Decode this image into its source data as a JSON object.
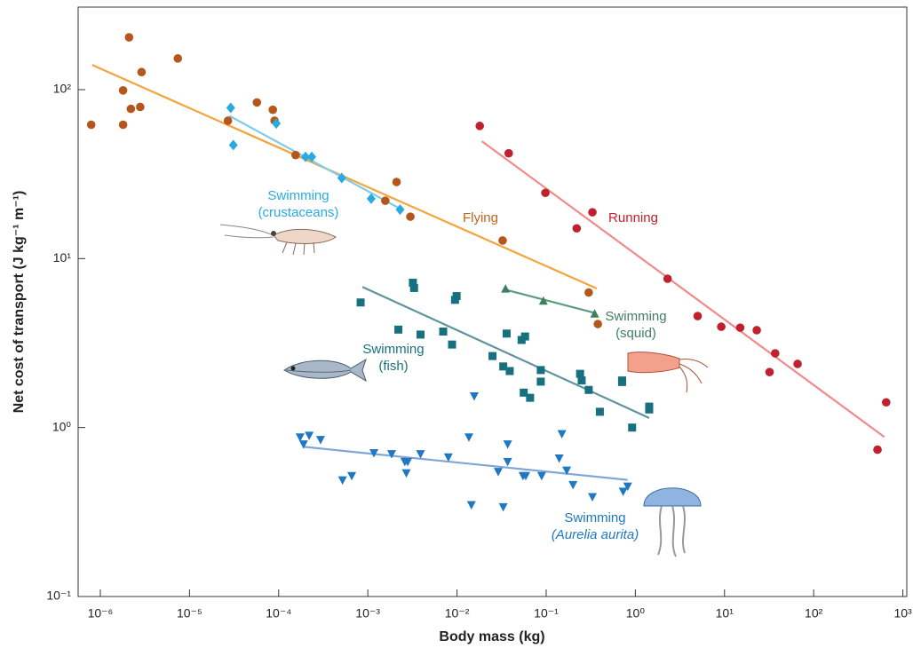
{
  "chart_data": {
    "type": "scatter",
    "log_x": true,
    "log_y": true,
    "x_label": "Body mass (kg)",
    "y_label": "Net cost of transport (J kg⁻¹ m⁻¹)",
    "xlim": [
      5.64e-07,
      1107
    ],
    "ylim": [
      0.1,
      308
    ],
    "xticks": [
      {
        "value": 1e-06,
        "label": "10⁻⁶"
      },
      {
        "value": 1e-05,
        "label": "10⁻⁵"
      },
      {
        "value": 0.0001,
        "label": "10⁻⁴"
      },
      {
        "value": 0.001,
        "label": "10⁻³"
      },
      {
        "value": 0.01,
        "label": "10⁻²"
      },
      {
        "value": 0.1,
        "label": "10⁻¹"
      },
      {
        "value": 1,
        "label": "10⁰"
      },
      {
        "value": 10,
        "label": "10¹"
      },
      {
        "value": 100,
        "label": "10²"
      },
      {
        "value": 1000,
        "label": "10³"
      }
    ],
    "yticks": [
      {
        "value": 0.1,
        "label": "10⁻¹"
      },
      {
        "value": 1,
        "label": "10⁰"
      },
      {
        "value": 10,
        "label": "10¹"
      },
      {
        "value": 100,
        "label": "10²"
      }
    ],
    "series": [
      {
        "color": "#b5561c",
        "marker": "circle",
        "x": [
          7.9e-07,
          2.1e-06,
          1.8e-06,
          2.2e-06,
          1.8e-06,
          2.9e-06,
          2.8e-06,
          7.4e-06,
          2.7e-05,
          5.7e-05,
          8.6e-05,
          9e-05,
          0.000155,
          0.0021,
          0.00157,
          0.003,
          0.0325,
          0.3,
          0.38
        ],
        "values": [
          62,
          204,
          99,
          77,
          62,
          127,
          79,
          153,
          65.5,
          84,
          76,
          65.5,
          41,
          28.4,
          22,
          17.7,
          12.8,
          6.3,
          4.1
        ]
      },
      {
        "color": "#29abe2",
        "marker": "diamond",
        "x": [
          2.9e-05,
          3.1e-05,
          9.4e-05,
          0.0002,
          0.000235,
          0.00051,
          0.00109,
          0.0023
        ],
        "values": [
          78,
          47,
          63,
          40,
          40,
          30,
          22.6,
          19.5
        ]
      },
      {
        "color": "#c0212f",
        "marker": "circle",
        "x": [
          0.018,
          0.038,
          0.098,
          0.33,
          0.22,
          2.3,
          5.0,
          9.2,
          15,
          23,
          37,
          66,
          32,
          520,
          650
        ],
        "values": [
          61,
          42,
          24.5,
          18.8,
          15.1,
          7.6,
          4.57,
          3.95,
          3.9,
          3.77,
          2.75,
          2.38,
          2.13,
          0.74,
          1.41
        ]
      },
      {
        "color": "#3f7f5f",
        "marker": "triangle-up",
        "x": [
          0.035,
          0.093,
          0.35
        ],
        "values": [
          6.6,
          5.6,
          4.7
        ]
      },
      {
        "color": "#17707f",
        "marker": "square",
        "x": [
          0.00083,
          0.0032,
          0.0033,
          0.0099,
          0.0095,
          0.0022,
          0.0039,
          0.007,
          0.0088,
          0.036,
          0.058,
          0.053,
          0.025,
          0.033,
          0.039,
          0.087,
          0.087,
          0.056,
          0.066,
          0.24,
          0.25,
          0.3,
          0.4,
          0.71,
          0.71,
          0.92,
          1.43,
          1.43
        ],
        "values": [
          5.5,
          7.2,
          6.7,
          6.0,
          5.7,
          3.8,
          3.55,
          3.7,
          3.1,
          3.6,
          3.46,
          3.3,
          2.65,
          2.3,
          2.16,
          2.19,
          1.87,
          1.61,
          1.5,
          2.08,
          1.9,
          1.67,
          1.24,
          1.9,
          1.86,
          1.0,
          1.28,
          1.33
        ]
      },
      {
        "color": "#1f78c1",
        "marker": "triangle-down",
        "x": [
          0.000174,
          0.00019,
          0.00022,
          0.000295,
          0.00052,
          0.00066,
          0.00117,
          0.00185,
          0.0026,
          0.0028,
          0.0027,
          0.0039,
          0.008,
          0.0156,
          0.0136,
          0.037,
          0.037,
          0.029,
          0.0145,
          0.033,
          0.055,
          0.059,
          0.089,
          0.14,
          0.15,
          0.17,
          0.2,
          0.33,
          0.73,
          0.82
        ],
        "values": [
          0.88,
          0.8,
          0.9,
          0.85,
          0.49,
          0.52,
          0.71,
          0.7,
          0.63,
          0.63,
          0.54,
          0.7,
          0.67,
          1.54,
          0.88,
          0.8,
          0.63,
          0.55,
          0.35,
          0.34,
          0.52,
          0.52,
          0.52,
          0.66,
          0.92,
          0.56,
          0.46,
          0.39,
          0.42,
          0.45
        ]
      }
    ],
    "fit_lines": [
      {
        "color": "#f5a33a",
        "x": [
          8.1e-07,
          0.37
        ],
        "values": [
          140,
          6.65
        ]
      },
      {
        "color": "#7fcde8",
        "x": [
          2.8e-05,
          0.0024
        ],
        "values": [
          70,
          19.5
        ]
      },
      {
        "color": "#f08a8a",
        "x": [
          0.019,
          620
        ],
        "values": [
          49.5,
          0.88
        ]
      },
      {
        "color": "#5e9a7c",
        "x": [
          0.033,
          0.36
        ],
        "values": [
          6.6,
          4.75
        ]
      },
      {
        "color": "#5f939f",
        "x": [
          0.00087,
          1.43
        ],
        "values": [
          6.8,
          1.14
        ]
      },
      {
        "color": "#7fa6d6",
        "x": [
          0.000187,
          0.82
        ],
        "values": [
          0.77,
          0.49
        ]
      }
    ],
    "annotations": [
      {
        "lines": [
          "Flying"
        ],
        "color": "#c0661a"
      },
      {
        "lines": [
          "Swimming",
          "(crustaceans)"
        ],
        "color": "#29abe2"
      },
      {
        "lines": [
          "Running"
        ],
        "color": "#c0212f"
      },
      {
        "lines": [
          "Swimming",
          "(squid)"
        ],
        "color": "#3f7f5f"
      },
      {
        "lines": [
          "Swimming",
          "(fish)"
        ],
        "color": "#17707f"
      },
      {
        "lines": [
          "Swimming",
          "(Aurelia aurita)"
        ],
        "color": "#1f78c1",
        "italic_last_line": true
      }
    ]
  }
}
